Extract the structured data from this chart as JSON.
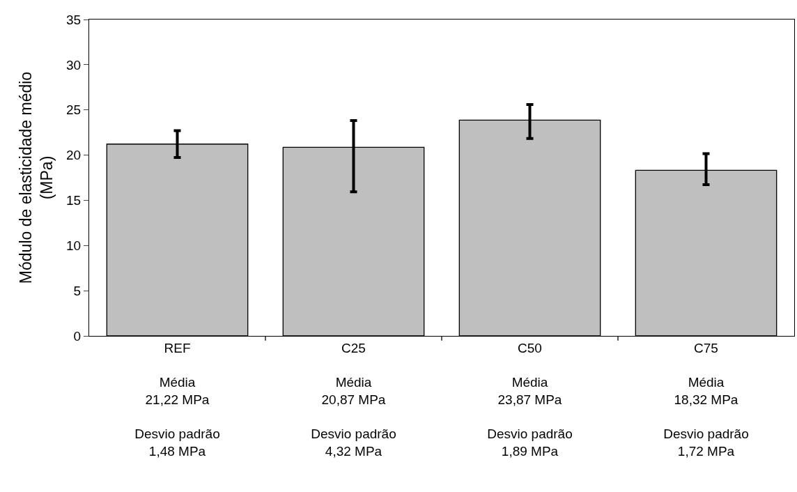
{
  "chart_data": {
    "type": "bar",
    "ylabel": "Módulo de elasticidade médio\n(MPa)",
    "categories": [
      "REF\n\nMédia\n21,22 MPa\n\nDesvio padrão\n1,48 MPa",
      "C25\n\nMédia\n20,87 MPa\n\nDesvio padrão\n4,32 MPa",
      "C50\n\nMédia\n23,87 MPa\n\nDesvio padrão\n1,89 MPa",
      "C75\n\nMédia\n18,32 MPa\n\nDesvio padrão\n1,72 MPa"
    ],
    "values": [
      21.22,
      20.87,
      23.87,
      18.32
    ],
    "errors": [
      1.48,
      [
        15.93,
        23.82
      ],
      [
        21.84,
        25.59
      ],
      [
        16.72,
        20.16
      ]
    ],
    "color": "#bfbfbf",
    "ylim": [
      0,
      35
    ],
    "yticks": [
      0,
      5,
      10,
      15,
      20,
      25,
      30,
      35
    ],
    "legend": false
  }
}
